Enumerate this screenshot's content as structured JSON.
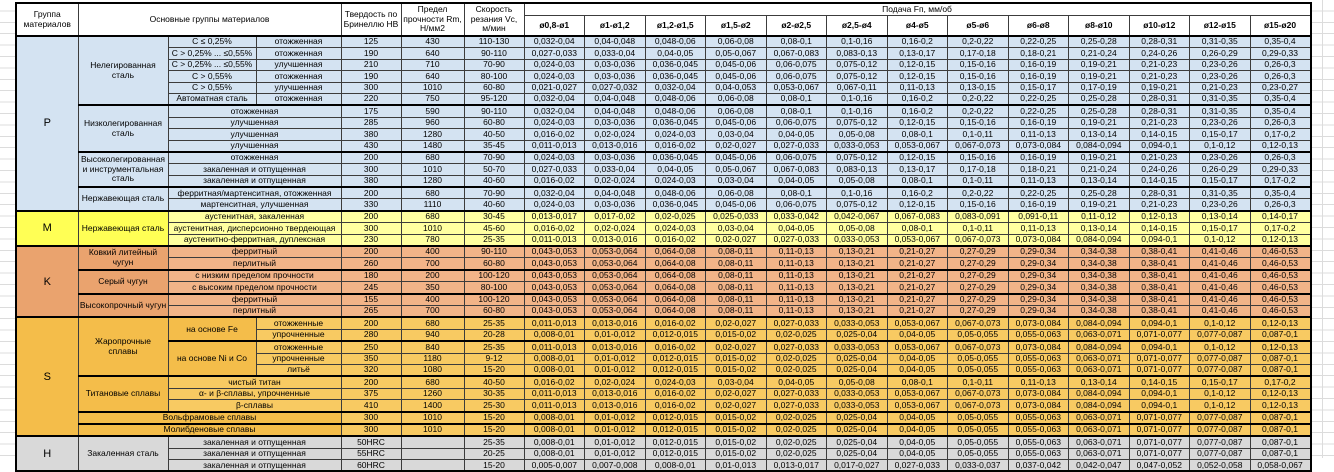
{
  "colors": {
    "p_label": "#d4e3f2",
    "p_cell": "#d4e3f2",
    "m_label": "#ffff55",
    "m_cell": "#ffffa0",
    "k_label": "#eaa36e",
    "k_cell": "#f2b488",
    "s_label": "#f4bd4a",
    "s_cell": "#f8ca62",
    "h_label": "#d9d9d9",
    "h_cell": "#d9d9d9"
  },
  "table": {
    "headers": {
      "group": "Группа материалов",
      "main_groups": "Основные группы материалов",
      "hardness": "Твердость по Бринеллю HB",
      "strength": "Предел прочности Rm, Н/мм2",
      "speed": "Скорость резания Vc, м/мин",
      "feed_super": "Подача Fп, мм/об",
      "feed_cols": [
        "ø0,8-ø1",
        "ø1-ø1,2",
        "ø1,2-ø1,5",
        "ø1,5-ø2",
        "ø2-ø2,5",
        "ø2,5-ø4",
        "ø4-ø5",
        "ø5-ø6",
        "ø6-ø8",
        "ø8-ø10",
        "ø10-ø12",
        "ø12-ø15",
        "ø15-ø20"
      ]
    },
    "feed_patterns": {
      "A": [
        "0,032-0,04",
        "0,04-0,048",
        "0,048-0,06",
        "0,06-0,08",
        "0,08-0,1",
        "0,1-0,16",
        "0,16-0,2",
        "0,2-0,22",
        "0,22-0,25",
        "0,25-0,28",
        "0,28-0,31",
        "0,31-0,35",
        "0,35-0,4"
      ],
      "B": [
        "0,027-0,033",
        "0,033-0,04",
        "0,04-0,05",
        "0,05-0,067",
        "0,067-0,083",
        "0,083-0,13",
        "0,13-0,17",
        "0,17-0,18",
        "0,18-0,21",
        "0,21-0,24",
        "0,24-0,26",
        "0,26-0,29",
        "0,29-0,33"
      ],
      "C": [
        "0,024-0,03",
        "0,03-0,036",
        "0,036-0,045",
        "0,045-0,06",
        "0,06-0,075",
        "0,075-0,12",
        "0,12-0,15",
        "0,15-0,16",
        "0,16-0,19",
        "0,19-0,21",
        "0,21-0,23",
        "0,23-0,26",
        "0,26-0,3"
      ],
      "D": [
        "0,021-0,027",
        "0,027-0,032",
        "0,032-0,04",
        "0,04-0,053",
        "0,053-0,067",
        "0,067-0,11",
        "0,11-0,13",
        "0,13-0,15",
        "0,15-0,17",
        "0,17-0,19",
        "0,19-0,21",
        "0,21-0,23",
        "0,23-0,27"
      ],
      "E": [
        "0,016-0,02",
        "0,02-0,024",
        "0,024-0,03",
        "0,03-0,04",
        "0,04-0,05",
        "0,05-0,08",
        "0,08-0,1",
        "0,1-0,11",
        "0,11-0,13",
        "0,13-0,14",
        "0,14-0,15",
        "0,15-0,17",
        "0,17-0,2"
      ],
      "F": [
        "0,011-0,013",
        "0,013-0,016",
        "0,016-0,02",
        "0,02-0,027",
        "0,027-0,033",
        "0,033-0,053",
        "0,053-0,067",
        "0,067-0,073",
        "0,073-0,084",
        "0,084-0,094",
        "0,094-0,1",
        "0,1-0,12",
        "0,12-0,13"
      ],
      "G": [
        "0,013-0,017",
        "0,017-0,02",
        "0,02-0,025",
        "0,025-0,033",
        "0,033-0,042",
        "0,042-0,067",
        "0,067-0,083",
        "0,083-0,091",
        "0,091-0,11",
        "0,11-0,12",
        "0,12-0,13",
        "0,13-0,14",
        "0,14-0,17"
      ],
      "K": [
        "0,043-0,053",
        "0,053-0,064",
        "0,064-0,08",
        "0,08-0,11",
        "0,11-0,13",
        "0,13-0,21",
        "0,21-0,27",
        "0,27-0,29",
        "0,29-0,34",
        "0,34-0,38",
        "0,38-0,41",
        "0,41-0,46",
        "0,46-0,53"
      ],
      "H": [
        "0,008-0,01",
        "0,01-0,012",
        "0,012-0,015",
        "0,015-0,02",
        "0,02-0,025",
        "0,025-0,04",
        "0,04-0,05",
        "0,05-0,055",
        "0,055-0,063",
        "0,063-0,071",
        "0,071-0,077",
        "0,077-0,087",
        "0,087-0,1"
      ],
      "I": [
        "0,005-0,007",
        "0,007-0,008",
        "0,008-0,01",
        "0,01-0,013",
        "0,013-0,017",
        "0,017-0,027",
        "0,027-0,033",
        "0,033-0,037",
        "0,037-0,042",
        "0,042-0,047",
        "0,047-0,052",
        "0,052-0,058",
        "0,058-0,067"
      ]
    },
    "groups": [
      {
        "letter": "P",
        "key": "p",
        "families": [
          {
            "name": "Нелегированная сталь",
            "rows": [
              {
                "sub": "C ≤ 0,25%",
                "cond": "отожженная",
                "hb": "125",
                "rm": "430",
                "vc": "110-130",
                "f": "A"
              },
              {
                "sub": "C > 0,25% ... ≤0,55%",
                "cond": "отожженная",
                "hb": "190",
                "rm": "640",
                "vc": "90-110",
                "f": "B"
              },
              {
                "sub": "C > 0,25% ... ≤0,55%",
                "cond": "улучшенная",
                "hb": "210",
                "rm": "710",
                "vc": "70-90",
                "f": "C"
              },
              {
                "sub": "C > 0,55%",
                "cond": "отожженная",
                "hb": "190",
                "rm": "640",
                "vc": "80-100",
                "f": "C"
              },
              {
                "sub": "C > 0,55%",
                "cond": "улучшенная",
                "hb": "300",
                "rm": "1010",
                "vc": "60-80",
                "f": "D"
              },
              {
                "sub": "Автоматная сталь",
                "cond": "отожженная",
                "hb": "220",
                "rm": "750",
                "vc": "95-120",
                "f": "A"
              }
            ]
          },
          {
            "name": "Низколегированная сталь",
            "rows": [
              {
                "merged": "отожженная",
                "hb": "175",
                "rm": "590",
                "vc": "90-110",
                "f": "A"
              },
              {
                "merged": "улучшенная",
                "hb": "285",
                "rm": "960",
                "vc": "60-80",
                "f": "C"
              },
              {
                "merged": "улучшенная",
                "hb": "380",
                "rm": "1280",
                "vc": "40-50",
                "f": "E"
              },
              {
                "merged": "улучшенная",
                "hb": "430",
                "rm": "1480",
                "vc": "35-45",
                "f": "F"
              }
            ]
          },
          {
            "name": "Высоколегированная и инструментальная сталь",
            "rows": [
              {
                "merged": "отожженная",
                "hb": "200",
                "rm": "680",
                "vc": "70-90",
                "f": "C"
              },
              {
                "merged": "закаленная и отпущенная",
                "hb": "300",
                "rm": "1010",
                "vc": "50-70",
                "f": "B"
              },
              {
                "merged": "закаленная и отпущенная",
                "hb": "380",
                "rm": "1280",
                "vc": "40-60",
                "f": "E"
              }
            ]
          },
          {
            "name": "Нержавеющая сталь",
            "rows": [
              {
                "merged": "ферритная/мартенситная, отожженная",
                "hb": "200",
                "rm": "680",
                "vc": "70-90",
                "f": "A"
              },
              {
                "merged": "мартенситная, улучшенная",
                "hb": "330",
                "rm": "1110",
                "vc": "40-60",
                "f": "C"
              }
            ]
          }
        ]
      },
      {
        "letter": "M",
        "key": "m",
        "families": [
          {
            "name": "Нержавеющая сталь",
            "rows": [
              {
                "merged": "аустенитная, закаленная",
                "hb": "200",
                "rm": "680",
                "vc": "30-45",
                "f": "G"
              },
              {
                "merged": "аустенитная, дисперсионно твердеющая",
                "hb": "300",
                "rm": "1010",
                "vc": "45-60",
                "f": "E"
              },
              {
                "merged": "аустенитно-ферритная, дуплексная",
                "hb": "230",
                "rm": "780",
                "vc": "25-35",
                "f": "F"
              }
            ]
          }
        ]
      },
      {
        "letter": "K",
        "key": "k",
        "families": [
          {
            "name": "Ковкий литейный чугун",
            "rows": [
              {
                "merged": "ферритный",
                "hb": "200",
                "rm": "400",
                "vc": "90-110",
                "f": "K"
              },
              {
                "merged": "перлитный",
                "hb": "260",
                "rm": "700",
                "vc": "60-80",
                "f": "K"
              }
            ]
          },
          {
            "name": "Серый чугун",
            "rows": [
              {
                "merged": "с низким пределом прочности",
                "hb": "180",
                "rm": "200",
                "vc": "100-120",
                "f": "K"
              },
              {
                "merged": "с высоким пределом прочности",
                "hb": "245",
                "rm": "350",
                "vc": "80-100",
                "f": "K"
              }
            ]
          },
          {
            "name": "Высокопрочный чугун",
            "rows": [
              {
                "merged": "ферритный",
                "hb": "155",
                "rm": "400",
                "vc": "100-120",
                "f": "K"
              },
              {
                "merged": "перлитный",
                "hb": "265",
                "rm": "700",
                "vc": "60-80",
                "f": "K"
              }
            ]
          }
        ]
      },
      {
        "letter": "S",
        "key": "s",
        "families": [
          {
            "name": "Жаропрочные сплавы",
            "subgroups": [
              {
                "name": "на основе Fe",
                "rows": [
                  {
                    "cond": "отожженные",
                    "hb": "200",
                    "rm": "680",
                    "vc": "25-35",
                    "f": "F"
                  },
                  {
                    "cond": "упрочненные",
                    "hb": "280",
                    "rm": "940",
                    "vc": "20-28",
                    "f": "H"
                  }
                ]
              },
              {
                "name": "на основе Ni и Co",
                "rows": [
                  {
                    "cond": "отожженные",
                    "hb": "250",
                    "rm": "840",
                    "vc": "25-35",
                    "f": "F"
                  },
                  {
                    "cond": "упрочненные",
                    "hb": "350",
                    "rm": "1180",
                    "vc": "9-12",
                    "f": "H"
                  },
                  {
                    "cond": "литьё",
                    "hb": "320",
                    "rm": "1080",
                    "vc": "15-20",
                    "f": "H"
                  }
                ]
              }
            ]
          },
          {
            "name": "Титановые сплавы",
            "rows": [
              {
                "merged": "чистый титан",
                "hb": "200",
                "rm": "680",
                "vc": "40-50",
                "f": "E"
              },
              {
                "merged": "α- и β-сплавы, упрочненные",
                "hb": "375",
                "rm": "1260",
                "vc": "30-35",
                "f": "F"
              },
              {
                "merged": "β-сплавы",
                "hb": "410",
                "rm": "1400",
                "vc": "25-30",
                "f": "F"
              }
            ]
          },
          {
            "full": "Вольфрамовые сплавы",
            "hb": "300",
            "rm": "1010",
            "vc": "15-20",
            "f": "H"
          },
          {
            "full": "Молибденовые сплавы",
            "hb": "300",
            "rm": "1010",
            "vc": "15-20",
            "f": "H"
          }
        ]
      },
      {
        "letter": "H",
        "key": "h",
        "families": [
          {
            "name": "Закаленная сталь",
            "rows": [
              {
                "merged": "закаленная и отпущенная",
                "hb": "50HRC",
                "rm": "",
                "vc": "25-35",
                "f": "H"
              },
              {
                "merged": "закаленная и отпущенная",
                "hb": "55HRC",
                "rm": "",
                "vc": "20-25",
                "f": "H"
              },
              {
                "merged": "закаленная и отпущенная",
                "hb": "60HRC",
                "rm": "",
                "vc": "15-20",
                "f": "I"
              }
            ]
          }
        ]
      }
    ]
  }
}
